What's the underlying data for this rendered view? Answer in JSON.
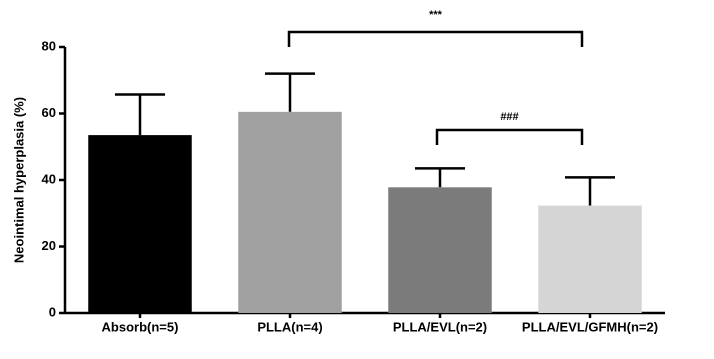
{
  "chart_data": {
    "type": "bar",
    "y_label": "Neointimal hyperplasia (%)",
    "categories": [
      "Absorb(n=5)",
      "PLLA(n=4)",
      "PLLA/EVL(n=2)",
      "PLLA/EVL/GFMH(n=2)"
    ],
    "values": [
      53.5,
      60.5,
      37.8,
      32.3
    ],
    "errors": [
      12.2,
      11.5,
      5.7,
      8.5
    ],
    "colors": [
      "#000000",
      "#a0a0a0",
      "#7b7b7b",
      "#d5d5d5"
    ],
    "ylim": [
      0,
      80
    ],
    "yticks": [
      0,
      20,
      40,
      60,
      80
    ],
    "annotations": [
      "***",
      "###"
    ]
  }
}
